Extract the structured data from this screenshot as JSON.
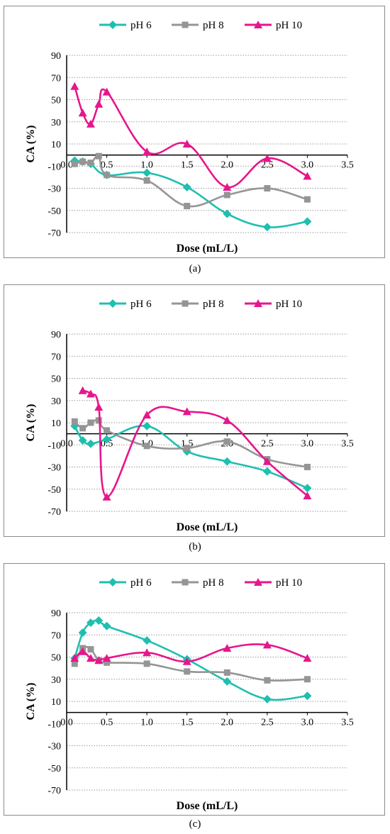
{
  "legend": [
    "pH 6",
    "pH 8",
    "pH 10"
  ],
  "colors": {
    "pH 6": "#1fbfaf",
    "pH 8": "#959595",
    "pH 10": "#e6168c"
  },
  "chart_data": [
    {
      "type": "line",
      "caption": "(a)",
      "xlabel": "Dose (mL/L)",
      "ylabel": "CA (%)",
      "xlim": [
        0,
        3.5
      ],
      "ylim": [
        -70,
        90
      ],
      "xticks": [
        "0.0",
        "0.5",
        "1.0",
        "1.5",
        "2.0",
        "2.5",
        "3.0",
        "3.5"
      ],
      "yticks": [
        "-70",
        "-50",
        "-30",
        "-10",
        "10",
        "30",
        "50",
        "70",
        "90"
      ],
      "series": [
        {
          "name": "pH 6",
          "x": [
            0.1,
            0.2,
            0.3,
            0.5,
            1.0,
            1.5,
            2.0,
            2.5,
            3.0
          ],
          "y": [
            -5,
            -6,
            -8,
            -18,
            -16,
            -29,
            -53,
            -65,
            -60
          ]
        },
        {
          "name": "pH 8",
          "x": [
            0.1,
            0.2,
            0.3,
            0.4,
            0.5,
            1.0,
            1.5,
            2.0,
            2.5,
            3.0
          ],
          "y": [
            -8,
            -6,
            -7,
            -1,
            -18,
            -23,
            -46,
            -36,
            -30,
            -40
          ]
        },
        {
          "name": "pH 10",
          "x": [
            0.1,
            0.2,
            0.3,
            0.4,
            0.5,
            1.0,
            1.5,
            2.0,
            2.5,
            3.0
          ],
          "y": [
            62,
            38,
            28,
            46,
            57,
            3,
            10,
            -29,
            -3,
            -19
          ]
        }
      ]
    },
    {
      "type": "line",
      "caption": "(b)",
      "xlabel": "Dose (mL/L)",
      "ylabel": "CA (%)",
      "xlim": [
        0,
        3.5
      ],
      "ylim": [
        -70,
        90
      ],
      "xticks": [
        "0.0",
        "0.5",
        "1.0",
        "1.5",
        "2.0",
        "2.5",
        "3.0",
        "3.5"
      ],
      "yticks": [
        "-70",
        "-50",
        "-30",
        "-10",
        "10",
        "30",
        "50",
        "70",
        "90"
      ],
      "series": [
        {
          "name": "pH 6",
          "x": [
            0.1,
            0.2,
            0.3,
            0.5,
            1.0,
            1.5,
            2.0,
            2.5,
            3.0
          ],
          "y": [
            7,
            -6,
            -9,
            -5,
            7,
            -16,
            -25,
            -34,
            -49
          ]
        },
        {
          "name": "pH 8",
          "x": [
            0.1,
            0.2,
            0.3,
            0.4,
            0.5,
            1.0,
            1.5,
            2.0,
            2.5,
            3.0
          ],
          "y": [
            11,
            5,
            10,
            12,
            3,
            -11,
            -13,
            -7,
            -23,
            -30
          ]
        },
        {
          "name": "pH 10",
          "x": [
            0.2,
            0.3,
            0.4,
            0.5,
            1.0,
            1.5,
            2.0,
            2.5,
            3.0
          ],
          "y": [
            39,
            36,
            24,
            -57,
            17,
            20,
            12,
            -25,
            -56
          ]
        }
      ]
    },
    {
      "type": "line",
      "caption": "(c)",
      "xlabel": "Dose (mL/L)",
      "ylabel": "CA (%)",
      "xlim": [
        0,
        3.5
      ],
      "ylim": [
        -70,
        90
      ],
      "xticks": [
        "0.0",
        "0.5",
        "1.0",
        "1.5",
        "2.0",
        "2.5",
        "3.0",
        "3.5"
      ],
      "yticks": [
        "-70",
        "-50",
        "-30",
        "-10",
        "10",
        "30",
        "50",
        "70",
        "90"
      ],
      "series": [
        {
          "name": "pH 6",
          "x": [
            0.1,
            0.2,
            0.3,
            0.4,
            0.5,
            1.0,
            1.5,
            2.0,
            2.5,
            3.0
          ],
          "y": [
            49,
            72,
            81,
            83,
            78,
            65,
            48,
            28,
            12,
            15
          ]
        },
        {
          "name": "pH 8",
          "x": [
            0.1,
            0.2,
            0.3,
            0.4,
            0.5,
            1.0,
            1.5,
            2.0,
            2.5,
            3.0
          ],
          "y": [
            44,
            58,
            57,
            47,
            45,
            44,
            37,
            36,
            29,
            30
          ]
        },
        {
          "name": "pH 10",
          "x": [
            0.1,
            0.2,
            0.3,
            0.4,
            0.5,
            1.0,
            1.5,
            2.0,
            2.5,
            3.0
          ],
          "y": [
            49,
            55,
            49,
            47,
            49,
            54,
            46,
            58,
            61,
            49
          ]
        }
      ]
    }
  ]
}
